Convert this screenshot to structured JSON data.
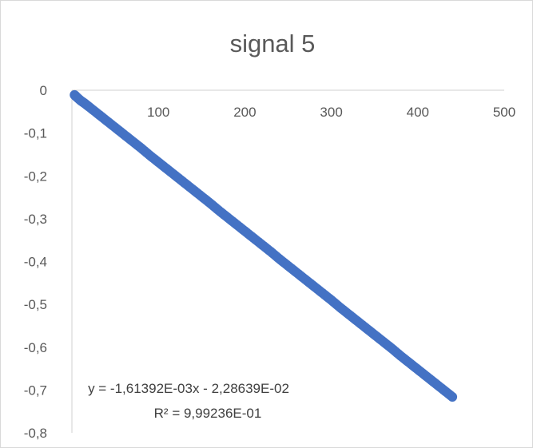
{
  "chart_data": {
    "type": "scatter",
    "title": "signal 5",
    "xlabel": "",
    "ylabel": "",
    "xlim": [
      0,
      500
    ],
    "ylim": [
      -0.8,
      0
    ],
    "x_ticks": [
      "100",
      "200",
      "300",
      "400",
      "500"
    ],
    "x_tick_values": [
      100,
      200,
      300,
      400,
      500
    ],
    "y_ticks": [
      "0",
      "-0,1",
      "-0,2",
      "-0,3",
      "-0,4",
      "-0,5",
      "-0,6",
      "-0,7",
      "-0,8"
    ],
    "y_tick_values": [
      0,
      -0.1,
      -0.2,
      -0.3,
      -0.4,
      -0.5,
      -0.6,
      -0.7,
      -0.8
    ],
    "x_axis_position": "top (y = 0)",
    "grid": false,
    "legend": "none",
    "marker_color": "#4472C4",
    "series": [
      {
        "x": [
          3,
          5,
          10,
          15,
          20,
          30,
          40,
          50,
          60,
          70,
          80,
          90,
          100,
          110,
          120,
          130,
          140,
          150,
          160,
          170,
          180,
          190,
          200,
          210,
          220,
          230,
          240,
          250,
          260,
          270,
          280,
          290,
          300,
          310,
          320,
          330,
          340,
          350,
          360,
          370,
          380,
          390,
          400,
          410,
          420,
          430,
          440
        ],
        "y": [
          -0.011,
          -0.015,
          -0.024,
          -0.031,
          -0.039,
          -0.055,
          -0.071,
          -0.087,
          -0.103,
          -0.119,
          -0.135,
          -0.152,
          -0.168,
          -0.184,
          -0.2,
          -0.216,
          -0.232,
          -0.248,
          -0.264,
          -0.281,
          -0.297,
          -0.313,
          -0.329,
          -0.345,
          -0.361,
          -0.377,
          -0.394,
          -0.41,
          -0.426,
          -0.442,
          -0.458,
          -0.474,
          -0.49,
          -0.507,
          -0.523,
          -0.539,
          -0.555,
          -0.571,
          -0.587,
          -0.603,
          -0.62,
          -0.636,
          -0.652,
          -0.668,
          -0.684,
          -0.7,
          -0.716
        ]
      }
    ],
    "trendline": {
      "type": "linear",
      "equation": "y = -1,61392E-03x - 2,28639E-02",
      "r_squared": "R² = 9,99236E-01",
      "slope": -0.00161392,
      "intercept": -0.0228639
    }
  }
}
